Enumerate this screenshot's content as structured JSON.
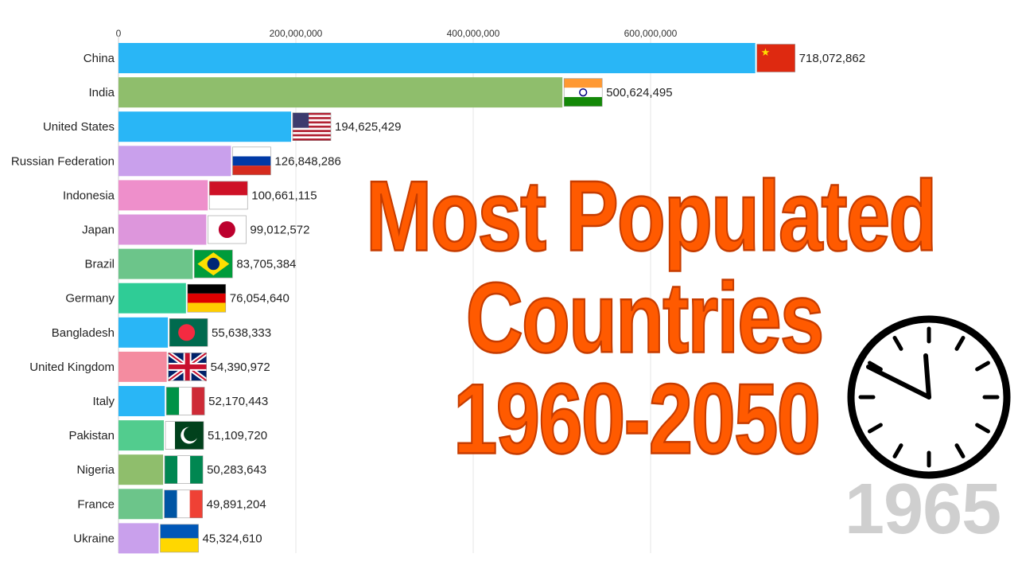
{
  "title": {
    "line1": "Most Populated",
    "line2": "Countries",
    "line3": "1960-2050"
  },
  "year": "1965",
  "colors": {
    "title": "#ff5a00",
    "year": "#cfcfcf"
  },
  "clock_icon": "clock-icon",
  "chart_data": {
    "type": "bar",
    "orientation": "horizontal",
    "xlim": [
      0,
      700000000
    ],
    "x_ticks": [
      "0",
      "200,000,000",
      "400,000,000",
      "600,000,000"
    ],
    "x_tick_values": [
      0,
      200000000,
      400000000,
      600000000
    ],
    "grid": true,
    "categories": [
      "China",
      "India",
      "United States",
      "Russian Federation",
      "Indonesia",
      "Japan",
      "Brazil",
      "Germany",
      "Bangladesh",
      "United Kingdom",
      "Italy",
      "Pakistan",
      "Nigeria",
      "France",
      "Ukraine"
    ],
    "values": [
      718072862,
      500624495,
      194625429,
      126848286,
      100661115,
      99012572,
      83705384,
      76054640,
      55638333,
      54390972,
      52170443,
      51109720,
      50283643,
      49891204,
      45324610
    ],
    "value_labels": [
      "718,072,862",
      "500,624,495",
      "194,625,429",
      "126,848,286",
      "100,661,115",
      "99,012,572",
      "83,705,384",
      "76,054,640",
      "55,638,333",
      "54,390,972",
      "52,170,443",
      "51,109,720",
      "50,283,643",
      "49,891,204",
      "45,324,610"
    ],
    "bar_colors": [
      "#29b6f6",
      "#8fbe6c",
      "#29b6f6",
      "#c9a0ec",
      "#ee8fcb",
      "#dd96dc",
      "#6cc58a",
      "#2fcc96",
      "#29b6f6",
      "#f48ca0",
      "#29b6f6",
      "#52cc8e",
      "#8fbe6c",
      "#6cc58a",
      "#c9a0ec"
    ],
    "flags": [
      "china-flag",
      "india-flag",
      "usa-flag",
      "russia-flag",
      "indonesia-flag",
      "japan-flag",
      "brazil-flag",
      "germany-flag",
      "bangladesh-flag",
      "uk-flag",
      "italy-flag",
      "pakistan-flag",
      "nigeria-flag",
      "france-flag",
      "ukraine-flag"
    ]
  }
}
